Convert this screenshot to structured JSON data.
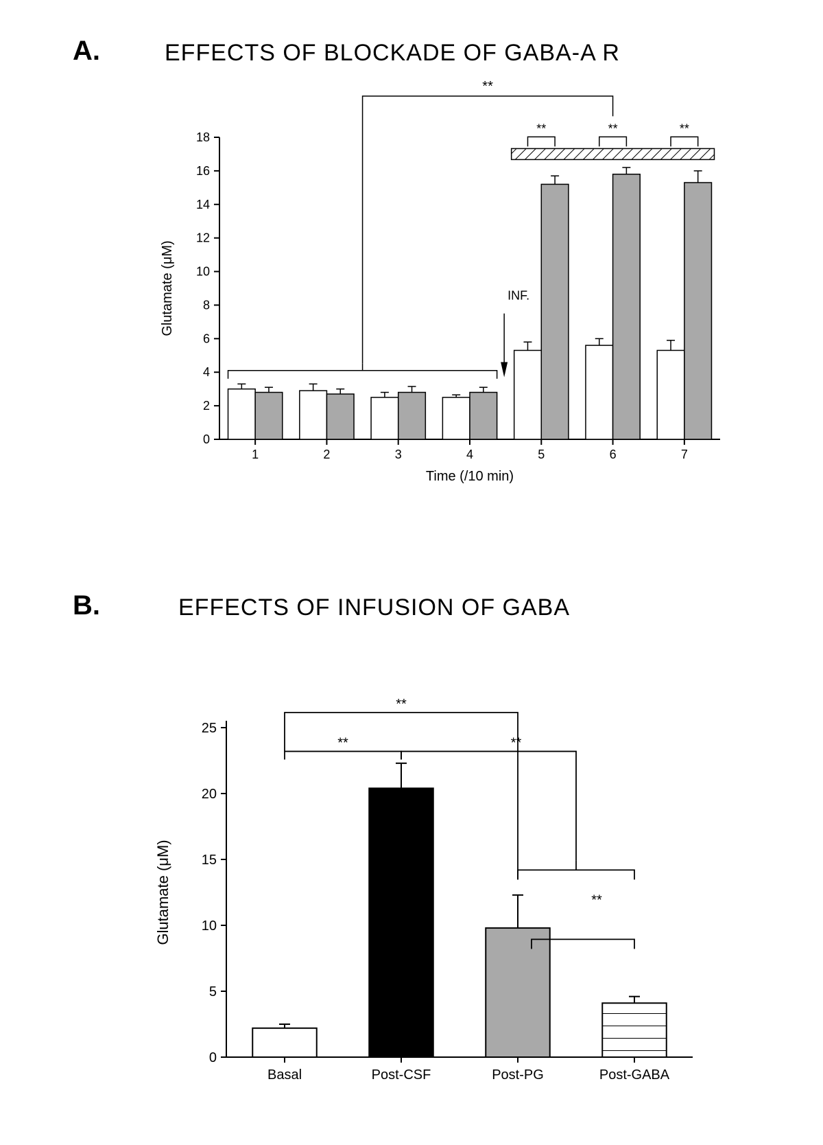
{
  "panelA": {
    "label": "A.",
    "title": "EFFECTS OF BLOCKADE OF GABA-A R",
    "type": "bar",
    "ylabel": "Glutamate (μM)",
    "xlabel": "Time (/10 min)",
    "ylim": [
      0,
      18
    ],
    "ytick_step": 2,
    "categories": [
      "1",
      "2",
      "3",
      "4",
      "5",
      "6",
      "7"
    ],
    "series": [
      {
        "name": "white",
        "fill": "#ffffff",
        "stroke": "#000000",
        "values": [
          3.0,
          2.9,
          2.5,
          2.5,
          5.3,
          5.6,
          5.3
        ],
        "errors": [
          0.3,
          0.4,
          0.3,
          0.15,
          0.5,
          0.4,
          0.6
        ]
      },
      {
        "name": "gray",
        "fill": "#a9a9a9",
        "stroke": "#000000",
        "values": [
          2.8,
          2.7,
          2.8,
          2.8,
          15.2,
          15.8,
          15.3
        ],
        "errors": [
          0.3,
          0.3,
          0.35,
          0.3,
          0.5,
          0.4,
          0.7
        ]
      }
    ],
    "bar_width": 0.38,
    "inf_label": "INF.",
    "sig_marker": "**",
    "hatched_bar_range": [
      5,
      7
    ],
    "label_fontsize": 20,
    "tick_fontsize": 18,
    "title_fontsize": 34,
    "background_color": "#ffffff",
    "axis_color": "#000000"
  },
  "panelB": {
    "label": "B.",
    "title": "EFFECTS OF INFUSION OF GABA",
    "type": "bar",
    "ylabel": "Glutamate (μM)",
    "ylim": [
      0,
      25
    ],
    "ytick_step": 5,
    "categories": [
      "Basal",
      "Post-CSF",
      "Post-PG",
      "Post-GABA"
    ],
    "bars": [
      {
        "value": 2.2,
        "error": 0.3,
        "fill": "#ffffff",
        "stroke": "#000000",
        "pattern": "none"
      },
      {
        "value": 20.4,
        "error": 1.9,
        "fill": "#000000",
        "stroke": "#000000",
        "pattern": "none"
      },
      {
        "value": 9.8,
        "error": 2.5,
        "fill": "#a9a9a9",
        "stroke": "#000000",
        "pattern": "none"
      },
      {
        "value": 4.1,
        "error": 0.5,
        "fill": "#ffffff",
        "stroke": "#000000",
        "pattern": "hstripe"
      }
    ],
    "bar_width": 0.55,
    "sig_marker": "**",
    "label_fontsize": 22,
    "tick_fontsize": 20,
    "title_fontsize": 34,
    "background_color": "#ffffff",
    "axis_color": "#000000"
  }
}
